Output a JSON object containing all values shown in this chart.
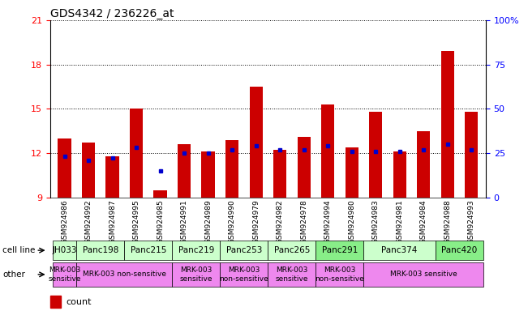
{
  "title": "GDS4342 / 236226_at",
  "samples": [
    "GSM924986",
    "GSM924992",
    "GSM924987",
    "GSM924995",
    "GSM924985",
    "GSM924991",
    "GSM924989",
    "GSM924990",
    "GSM924979",
    "GSM924982",
    "GSM924978",
    "GSM924994",
    "GSM924980",
    "GSM924983",
    "GSM924981",
    "GSM924984",
    "GSM924988",
    "GSM924993"
  ],
  "bar_values": [
    13.0,
    12.7,
    11.8,
    15.0,
    9.5,
    12.6,
    12.1,
    12.9,
    16.5,
    12.2,
    13.1,
    15.3,
    12.4,
    14.8,
    12.1,
    13.5,
    18.9,
    14.8
  ],
  "percentile_values": [
    11.8,
    11.5,
    11.7,
    12.4,
    10.8,
    12.0,
    12.0,
    12.2,
    12.5,
    12.2,
    12.2,
    12.5,
    12.1,
    12.1,
    12.1,
    12.2,
    12.6,
    12.2
  ],
  "cell_lines": [
    {
      "name": "JH033",
      "start": 0,
      "end": 1,
      "color": "#ccffcc"
    },
    {
      "name": "Panc198",
      "start": 1,
      "end": 3,
      "color": "#ccffcc"
    },
    {
      "name": "Panc215",
      "start": 3,
      "end": 5,
      "color": "#ccffcc"
    },
    {
      "name": "Panc219",
      "start": 5,
      "end": 7,
      "color": "#ccffcc"
    },
    {
      "name": "Panc253",
      "start": 7,
      "end": 9,
      "color": "#ccffcc"
    },
    {
      "name": "Panc265",
      "start": 9,
      "end": 11,
      "color": "#ccffcc"
    },
    {
      "name": "Panc291",
      "start": 11,
      "end": 13,
      "color": "#88ee88"
    },
    {
      "name": "Panc374",
      "start": 13,
      "end": 16,
      "color": "#ccffcc"
    },
    {
      "name": "Panc420",
      "start": 16,
      "end": 18,
      "color": "#88ee88"
    }
  ],
  "other_labels": [
    {
      "name": "MRK-003\nsensitive",
      "start": 0,
      "end": 1,
      "color": "#ee88ee"
    },
    {
      "name": "MRK-003 non-sensitive",
      "start": 1,
      "end": 5,
      "color": "#ee88ee"
    },
    {
      "name": "MRK-003\nsensitive",
      "start": 5,
      "end": 7,
      "color": "#ee88ee"
    },
    {
      "name": "MRK-003\nnon-sensitive",
      "start": 7,
      "end": 9,
      "color": "#ee88ee"
    },
    {
      "name": "MRK-003\nsensitive",
      "start": 9,
      "end": 11,
      "color": "#ee88ee"
    },
    {
      "name": "MRK-003\nnon-sensitive",
      "start": 11,
      "end": 13,
      "color": "#ee88ee"
    },
    {
      "name": "MRK-003 sensitive",
      "start": 13,
      "end": 18,
      "color": "#ee88ee"
    }
  ],
  "ylim_left": [
    9,
    21
  ],
  "yticks_left": [
    9,
    12,
    15,
    18,
    21
  ],
  "ylim_right": [
    0,
    100
  ],
  "yticks_right": [
    0,
    25,
    50,
    75,
    100
  ],
  "bar_color": "#cc0000",
  "percentile_color": "#0000cc",
  "bar_width": 0.55,
  "xlabel_bg": "#d8d8d8"
}
